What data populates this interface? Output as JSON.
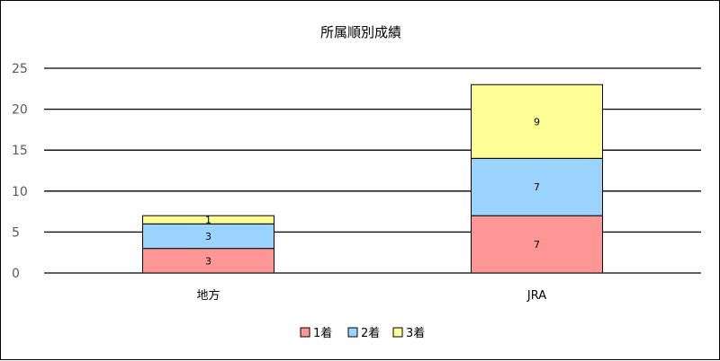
{
  "chart_data": {
    "type": "bar",
    "stacked": true,
    "title": "所属順別成績",
    "categories": [
      "地方",
      "JRA"
    ],
    "series": [
      {
        "name": "1着",
        "values": [
          3,
          7
        ],
        "color": "#FF9696"
      },
      {
        "name": "2着",
        "values": [
          3,
          7
        ],
        "color": "#9BD3FF"
      },
      {
        "name": "3着",
        "values": [
          1,
          9
        ],
        "color": "#FFFF96"
      }
    ],
    "ylim": [
      0,
      25
    ],
    "yticks": [
      0,
      5,
      10,
      15,
      20,
      25
    ],
    "grid": true,
    "legend": "bottom",
    "data_labels": true
  }
}
